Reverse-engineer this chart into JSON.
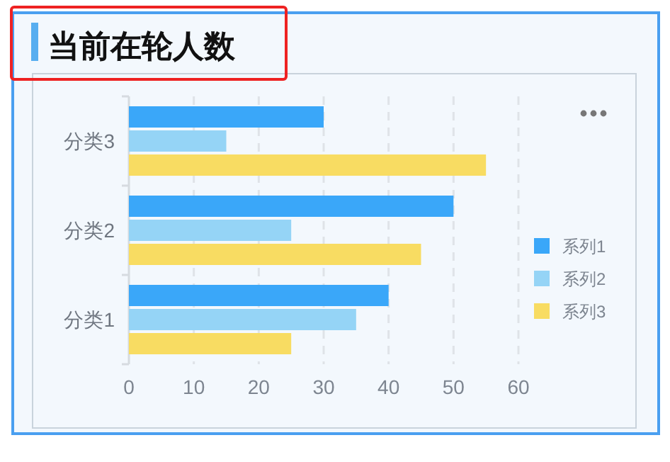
{
  "chart_data": {
    "type": "bar",
    "orientation": "horizontal",
    "title": "当前在轮人数",
    "categories": [
      "分类3",
      "分类2",
      "分类1"
    ],
    "series": [
      {
        "name": "系列1",
        "color": "#3aa7f9",
        "values": [
          30,
          50,
          40
        ]
      },
      {
        "name": "系列2",
        "color": "#95d4f6",
        "values": [
          15,
          25,
          35
        ]
      },
      {
        "name": "系列3",
        "color": "#f8dc62",
        "values": [
          55,
          45,
          25
        ]
      }
    ],
    "xlim": [
      0,
      60
    ],
    "xticks": [
      0,
      10,
      20,
      30,
      40,
      50,
      60
    ],
    "grid": "x",
    "legend": "right"
  }
}
